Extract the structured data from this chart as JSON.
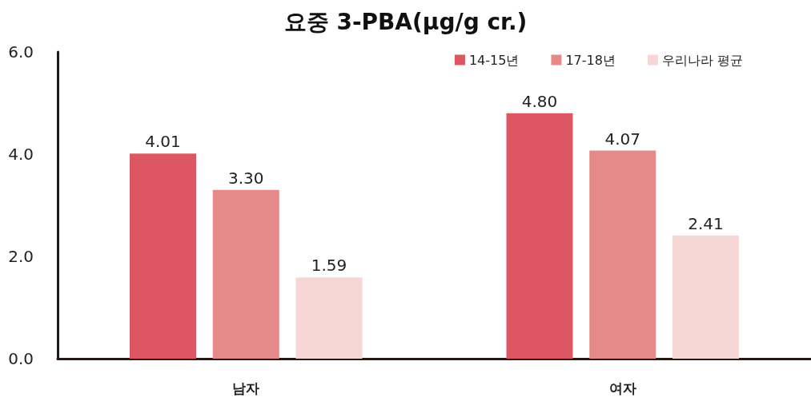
{
  "chart_data": {
    "type": "bar",
    "title": "요중 3-PBA(μg/g cr.)",
    "categories": [
      "남자",
      "여자"
    ],
    "series": [
      {
        "name": "14-15년",
        "color": "#dc5762",
        "values": [
          4.01,
          4.8
        ],
        "value_labels": [
          "4.01",
          "4.80"
        ]
      },
      {
        "name": "17-18년",
        "color": "#e58a88",
        "values": [
          3.3,
          4.07
        ],
        "value_labels": [
          "3.30",
          "4.07"
        ]
      },
      {
        "name": "우리나라 평균",
        "color": "#f6d7d5",
        "values": [
          1.59,
          2.41
        ],
        "value_labels": [
          "1.59",
          "2.41"
        ]
      }
    ],
    "ylim": [
      0,
      6
    ],
    "yticks": [
      {
        "value": 0,
        "label": "0.0"
      },
      {
        "value": 2,
        "label": "2.0"
      },
      {
        "value": 4,
        "label": "4.0"
      },
      {
        "value": 6,
        "label": "6.0"
      }
    ],
    "grid": false,
    "legend": "top right"
  }
}
